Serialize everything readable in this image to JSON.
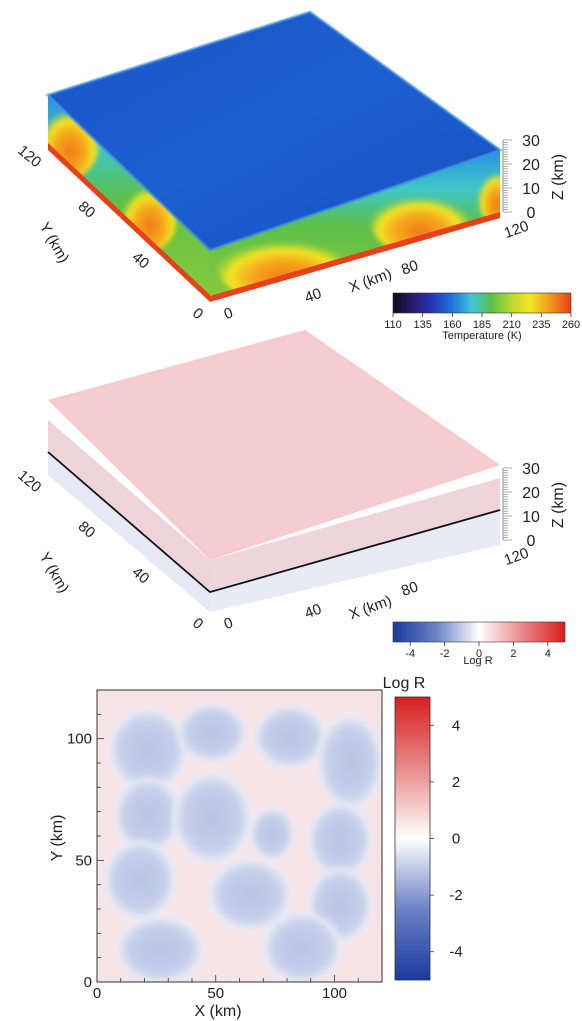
{
  "chart_data": [
    {
      "type": "heatmap",
      "variant": "3d-block",
      "title": "",
      "x_axis": {
        "label": "X (km)",
        "ticks": [
          "0",
          "40",
          "80",
          "120"
        ]
      },
      "y_axis": {
        "label": "Y (km)",
        "ticks": [
          "0",
          "40",
          "80",
          "120"
        ]
      },
      "z_axis": {
        "label": "Z (km)",
        "ticks": [
          "0",
          "10",
          "20",
          "30"
        ]
      },
      "colorbar": {
        "label": "Temperature (K)",
        "ticks": [
          "110",
          "135",
          "160",
          "185",
          "210",
          "235",
          "260"
        ],
        "range": [
          110,
          260
        ],
        "colors": [
          "#0b0b12",
          "#2a1a6e",
          "#2535b8",
          "#1e73d8",
          "#3ec5e0",
          "#58c04a",
          "#b8d832",
          "#f2e524",
          "#f29a1c",
          "#e8401a"
        ]
      },
      "surface_value": 150,
      "deep_value": 250
    },
    {
      "type": "heatmap",
      "variant": "3d-block",
      "title": "",
      "x_axis": {
        "label": "X (km)",
        "ticks": [
          "0",
          "40",
          "80",
          "120"
        ]
      },
      "y_axis": {
        "label": "Y (km)",
        "ticks": [
          "0",
          "40",
          "80",
          "120"
        ]
      },
      "z_axis": {
        "label": "Z (km)",
        "ticks": [
          "0",
          "10",
          "20",
          "30"
        ]
      },
      "colorbar": {
        "label": "Log R",
        "ticks": [
          "-4",
          "-2",
          "0",
          "2",
          "4"
        ],
        "range": [
          -5,
          5
        ],
        "colors": [
          "#1a3aa0",
          "#6b82c4",
          "#ffffff",
          "#e88a8a",
          "#d81d1d"
        ]
      },
      "surface_value": 1,
      "interior_value": -1
    },
    {
      "type": "heatmap",
      "variant": "map",
      "title": "",
      "x_axis": {
        "label": "X (km)",
        "ticks": [
          "0",
          "50",
          "100"
        ],
        "range": [
          0,
          120
        ]
      },
      "y_axis": {
        "label": "Y (km)",
        "ticks": [
          "0",
          "50",
          "100"
        ],
        "range": [
          0,
          120
        ]
      },
      "colorbar": {
        "label": "Log R",
        "ticks": [
          "-4",
          "-2",
          "0",
          "2",
          "4"
        ],
        "range": [
          -5,
          5
        ],
        "colors": [
          "#1a3aa0",
          "#6b82c4",
          "#ffffff",
          "#e88a8a",
          "#d81d1d"
        ]
      },
      "background_value": 0.3,
      "cell_value": -1.2
    }
  ]
}
